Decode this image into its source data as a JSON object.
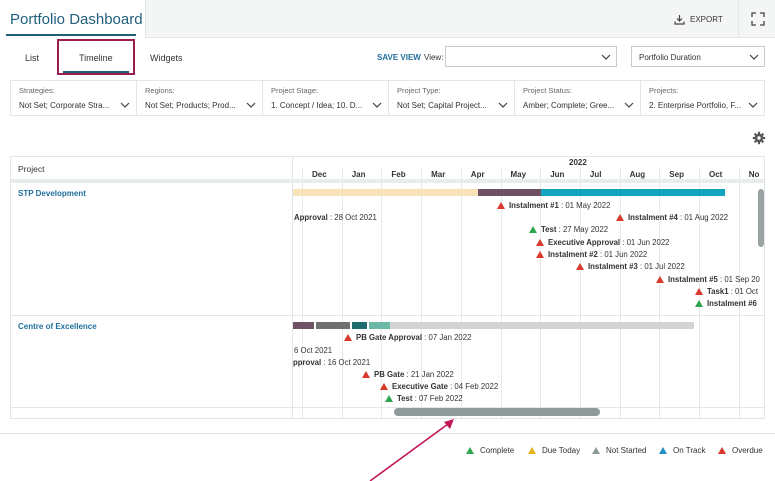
{
  "header": {
    "title": "Portfolio Dashboard",
    "export_label": "EXPORT"
  },
  "tabs": [
    {
      "label": "List"
    },
    {
      "label": "Timeline",
      "active": true
    },
    {
      "label": "Widgets"
    }
  ],
  "toolbar": {
    "save_view_label": "SAVE VIEW",
    "view_label": "View:",
    "view_value": "",
    "duration_value": "Portfolio Duration"
  },
  "filters": [
    {
      "label": "Strategies:",
      "value": "Not Set; Corporate Stra..."
    },
    {
      "label": "Regions:",
      "value": "Not Set; Products; Prod..."
    },
    {
      "label": "Project Stage:",
      "value": "1. Concept / Idea; 10. D..."
    },
    {
      "label": "Project Type:",
      "value": "Not Set; Capital Project..."
    },
    {
      "label": "Project Status:",
      "value": "Amber; Complete; Gree..."
    },
    {
      "label": "Projects:",
      "value": "2. Enterprise Portfolio, F..."
    }
  ],
  "gantt": {
    "project_header": "Project",
    "year": "2022",
    "months": [
      "Dec",
      "Jan",
      "Feb",
      "Mar",
      "Apr",
      "May",
      "Jun",
      "Jul",
      "Aug",
      "Sep",
      "Oct",
      "No"
    ],
    "projects": [
      {
        "name": "STP Development",
        "milestones": [
          {
            "name": "Approval",
            "date": "28 Oct 2021",
            "status": "partial-left"
          },
          {
            "name": "Instalment #1",
            "date": "01 May 2022",
            "status": "overdue"
          },
          {
            "name": "Instalment #4",
            "date": "01 Aug 2022",
            "status": "overdue"
          },
          {
            "name": "Test",
            "date": "27 May 2022",
            "status": "complete"
          },
          {
            "name": "Executive Approval",
            "date": "01 Jun 2022",
            "status": "overdue"
          },
          {
            "name": "Instalment #2",
            "date": "01 Jun 2022",
            "status": "overdue"
          },
          {
            "name": "Instalment #3",
            "date": "01 Jul 2022",
            "status": "overdue"
          },
          {
            "name": "Instalment #5",
            "date": "01 Sep 20",
            "status": "overdue"
          },
          {
            "name": "Task1",
            "date": "01 Oct",
            "status": "overdue"
          },
          {
            "name": "Instalment #6",
            "date": "",
            "status": "complete"
          }
        ]
      },
      {
        "name": "Centre of Excellence",
        "milestones": [
          {
            "name": "PB Gate Approval",
            "date": "07 Jan 2022",
            "status": "overdue"
          },
          {
            "name": "",
            "date": "6 Oct 2021",
            "status": "partial-left"
          },
          {
            "name": "pproval",
            "date": "16 Oct 2021",
            "status": "partial-left"
          },
          {
            "name": "PB Gate",
            "date": "21 Jan 2022",
            "status": "overdue"
          },
          {
            "name": "Executive Gate",
            "date": "04 Feb 2022",
            "status": "overdue"
          },
          {
            "name": "Test",
            "date": "07 Feb 2022",
            "status": "complete"
          }
        ]
      }
    ]
  },
  "legend": [
    {
      "label": "Complete",
      "color": "#2ea44f"
    },
    {
      "label": "Due Today",
      "color": "#e3b317"
    },
    {
      "label": "Not Started",
      "color": "#8e9a9a"
    },
    {
      "label": "On Track",
      "color": "#1f8fc0"
    },
    {
      "label": "Overdue",
      "color": "#d9382c"
    }
  ],
  "colors": {
    "brand": "#1f5f7c",
    "link": "#1f6f9c",
    "highlight": "#9c1c4e",
    "complete": "#2ea44f",
    "overdue": "#d9382c",
    "bar_beige": "#f8e2b8",
    "bar_purple": "#6e5163",
    "bar_teal": "#12a4bf",
    "bar_gray": "#6f6f70",
    "bar_darkteal": "#1c6e6e",
    "bar_mint": "#6ab9a6",
    "bar_lightgray": "#d3d3d3"
  },
  "icons": [
    "export-icon",
    "fullscreen-icon",
    "chevron-down-icon",
    "gear-icon"
  ]
}
